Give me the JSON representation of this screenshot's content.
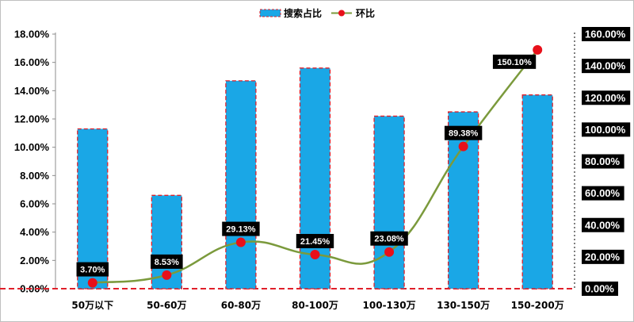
{
  "chart_data": {
    "type": "bar",
    "categories": [
      "50万以下",
      "50-60万",
      "60-80万",
      "80-100万",
      "100-130万",
      "130-150万",
      "150-200万"
    ],
    "series": [
      {
        "name": "搜索占比",
        "type": "bar",
        "axis": "left",
        "values": [
          11.3,
          6.6,
          14.7,
          15.6,
          12.2,
          12.5,
          13.7
        ],
        "color": "#1aa7e6",
        "border_color": "#e0202a"
      },
      {
        "name": "环比",
        "type": "line",
        "axis": "right",
        "values": [
          3.7,
          8.53,
          29.13,
          21.45,
          23.08,
          89.38,
          150.1
        ],
        "labels": [
          "3.70%",
          "8.53%",
          "29.13%",
          "21.45%",
          "23.08%",
          "89.38%",
          "150.10%"
        ],
        "color": "#7b9a3c",
        "marker_color": "#e8101a"
      }
    ],
    "y_left": {
      "ylim": [
        0,
        18
      ],
      "ticks": [
        "0.00%",
        "2.00%",
        "4.00%",
        "6.00%",
        "8.00%",
        "10.00%",
        "12.00%",
        "14.00%",
        "16.00%",
        "18.00%"
      ]
    },
    "y_right": {
      "ylim": [
        0,
        160
      ],
      "ticks": [
        "0.00%",
        "20.00%",
        "40.00%",
        "60.00%",
        "80.00%",
        "100.00%",
        "120.00%",
        "140.00%",
        "160.00%"
      ]
    },
    "legend_position": "top-center",
    "grid": false
  }
}
